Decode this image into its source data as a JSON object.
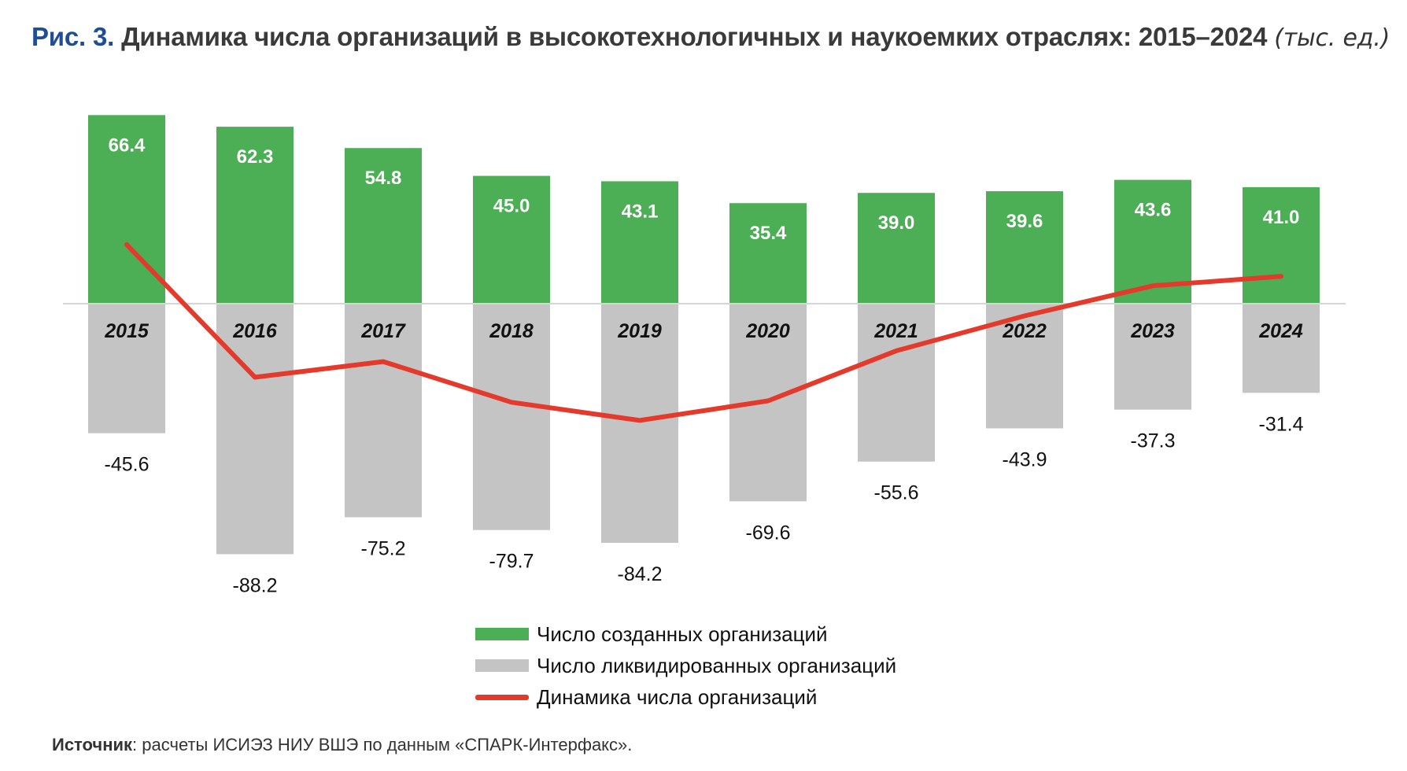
{
  "title": {
    "fig": "Рис. 3.",
    "main": "Динамика числа организаций в высокотехнологичных и наукоемких отраслях: 2015–2024",
    "unit": "(тыс. ед.)"
  },
  "colors": {
    "created": "#4cae55",
    "liquidated": "#c4c4c4",
    "dynamics": "#e43a2b",
    "title_accent": "#1f4e96"
  },
  "chart_data": {
    "type": "bar",
    "categories": [
      "2015",
      "2016",
      "2017",
      "2018",
      "2019",
      "2020",
      "2021",
      "2022",
      "2023",
      "2024"
    ],
    "series": [
      {
        "name": "Число созданных организаций",
        "type": "bar",
        "values": [
          66.4,
          62.3,
          54.8,
          45.0,
          43.1,
          35.4,
          39.0,
          39.6,
          43.6,
          41.0
        ],
        "labels": [
          "66.4",
          "62.3",
          "54.8",
          "45.0",
          "43.1",
          "35.4",
          "39.0",
          "39.6",
          "43.6",
          "41.0"
        ]
      },
      {
        "name": "Число ликвидированных организаций",
        "type": "bar",
        "values": [
          -45.6,
          -88.2,
          -75.2,
          -79.7,
          -84.2,
          -69.6,
          -55.6,
          -43.9,
          -37.3,
          -31.4
        ],
        "labels": [
          "-45.6",
          "-88.2",
          "-75.2",
          "-79.7",
          "-84.2",
          "-69.6",
          "-55.6",
          "-43.9",
          "-37.3",
          "-31.4"
        ]
      },
      {
        "name": "Динамика числа организаций",
        "type": "line",
        "values": [
          20.8,
          -25.9,
          -20.4,
          -34.7,
          -41.1,
          -34.2,
          -16.6,
          -4.3,
          6.3,
          9.6
        ]
      }
    ],
    "ylim": [
      -100,
      70
    ],
    "grid": false,
    "legend": "bottom-center"
  },
  "legend": {
    "created": "Число созданных организаций",
    "liquidated": "Число ликвидированных организаций",
    "dynamics": "Динамика числа организаций"
  },
  "source": {
    "label": "Источник",
    "text": ": расчеты ИСИЭЗ НИУ ВШЭ по данным «СПАРК-Интерфакс»."
  }
}
